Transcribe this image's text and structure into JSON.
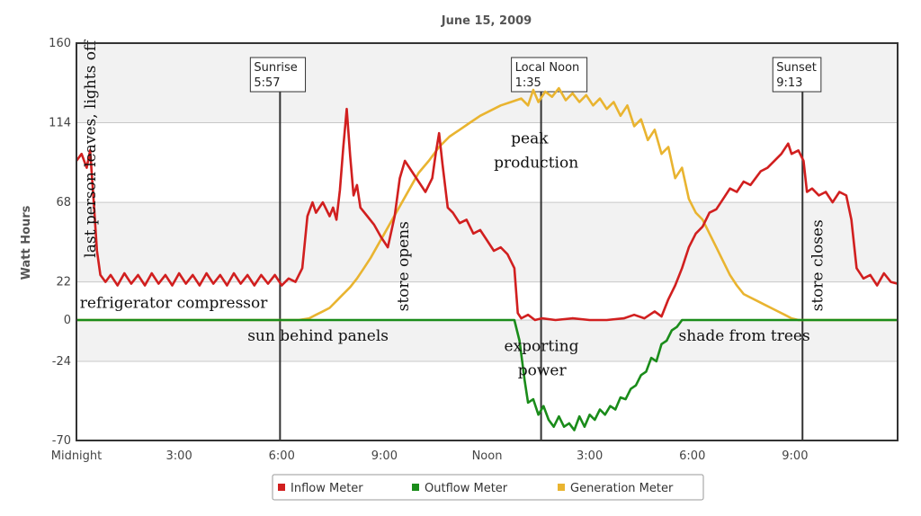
{
  "chart_data": {
    "type": "line",
    "title": "June 15, 2009",
    "ylabel": "Watt Hours",
    "xlabel": "",
    "ylim": [
      -70,
      160
    ],
    "xlim": [
      0,
      24
    ],
    "y_ticks": [
      {
        "value": 160,
        "label": "160"
      },
      {
        "value": 114,
        "label": "114"
      },
      {
        "value": 68,
        "label": "68"
      },
      {
        "value": 22,
        "label": "22"
      },
      {
        "value": 0,
        "label": "0"
      },
      {
        "value": -24,
        "label": "-24"
      },
      {
        "value": -70,
        "label": "-70"
      }
    ],
    "x_ticks": [
      {
        "value": 0,
        "label": "Midnight"
      },
      {
        "value": 3,
        "label": "3:00"
      },
      {
        "value": 6,
        "label": "6:00"
      },
      {
        "value": 9,
        "label": "9:00"
      },
      {
        "value": 12,
        "label": "Noon"
      },
      {
        "value": 15,
        "label": "3:00"
      },
      {
        "value": 18,
        "label": "6:00"
      },
      {
        "value": 21,
        "label": "9:00"
      }
    ],
    "grid": true,
    "legend_position": "bottom-center",
    "markers": [
      {
        "x": 5.95,
        "line1": "Sunrise",
        "line2": "5:57"
      },
      {
        "x": 13.58,
        "line1": "Local Noon",
        "line2": "1:35"
      },
      {
        "x": 21.22,
        "line1": "Sunset",
        "line2": "9:13"
      }
    ],
    "annotations": [
      {
        "text": "last person leaves, lights off",
        "x": 0.55,
        "y": 36,
        "rotate": true
      },
      {
        "text": "refrigerator compressor",
        "x": 0.1,
        "y": 7,
        "rotate": false
      },
      {
        "text": "sun behind panels",
        "x": 5.0,
        "y": -12,
        "rotate": false
      },
      {
        "text": "store opens",
        "x": 9.7,
        "y": 5,
        "rotate": true
      },
      {
        "text": "peak",
        "x": 12.7,
        "y": 102,
        "rotate": false
      },
      {
        "text": "production",
        "x": 12.2,
        "y": 88,
        "rotate": false
      },
      {
        "text": "exporting",
        "x": 12.5,
        "y": -18,
        "rotate": false
      },
      {
        "text": "power",
        "x": 12.9,
        "y": -32,
        "rotate": false
      },
      {
        "text": "shade from trees",
        "x": 17.6,
        "y": -12,
        "rotate": false
      },
      {
        "text": "store closes",
        "x": 21.8,
        "y": 5,
        "rotate": true
      }
    ],
    "series": [
      {
        "name": "Inflow Meter",
        "color": "#d11f1f",
        "points": [
          [
            0,
            92
          ],
          [
            0.15,
            96
          ],
          [
            0.3,
            88
          ],
          [
            0.4,
            98
          ],
          [
            0.5,
            70
          ],
          [
            0.6,
            40
          ],
          [
            0.7,
            26
          ],
          [
            0.85,
            22
          ],
          [
            1.0,
            26
          ],
          [
            1.2,
            20
          ],
          [
            1.4,
            27
          ],
          [
            1.6,
            21
          ],
          [
            1.8,
            26
          ],
          [
            2.0,
            20
          ],
          [
            2.2,
            27
          ],
          [
            2.4,
            21
          ],
          [
            2.6,
            26
          ],
          [
            2.8,
            20
          ],
          [
            3.0,
            27
          ],
          [
            3.2,
            21
          ],
          [
            3.4,
            26
          ],
          [
            3.6,
            20
          ],
          [
            3.8,
            27
          ],
          [
            4.0,
            21
          ],
          [
            4.2,
            26
          ],
          [
            4.4,
            20
          ],
          [
            4.6,
            27
          ],
          [
            4.8,
            21
          ],
          [
            5.0,
            26
          ],
          [
            5.2,
            20
          ],
          [
            5.4,
            26
          ],
          [
            5.6,
            21
          ],
          [
            5.8,
            26
          ],
          [
            6.0,
            20
          ],
          [
            6.2,
            24
          ],
          [
            6.4,
            22
          ],
          [
            6.6,
            30
          ],
          [
            6.75,
            60
          ],
          [
            6.9,
            68
          ],
          [
            7.0,
            62
          ],
          [
            7.2,
            68
          ],
          [
            7.4,
            60
          ],
          [
            7.5,
            65
          ],
          [
            7.6,
            58
          ],
          [
            7.7,
            75
          ],
          [
            7.8,
            100
          ],
          [
            7.9,
            122
          ],
          [
            8.0,
            95
          ],
          [
            8.1,
            72
          ],
          [
            8.2,
            78
          ],
          [
            8.3,
            65
          ],
          [
            8.5,
            60
          ],
          [
            8.7,
            55
          ],
          [
            8.9,
            48
          ],
          [
            9.1,
            42
          ],
          [
            9.3,
            60
          ],
          [
            9.45,
            82
          ],
          [
            9.6,
            92
          ],
          [
            9.8,
            86
          ],
          [
            10.0,
            80
          ],
          [
            10.2,
            74
          ],
          [
            10.4,
            82
          ],
          [
            10.5,
            96
          ],
          [
            10.6,
            108
          ],
          [
            10.7,
            90
          ],
          [
            10.85,
            65
          ],
          [
            11.0,
            62
          ],
          [
            11.2,
            56
          ],
          [
            11.4,
            58
          ],
          [
            11.6,
            50
          ],
          [
            11.8,
            52
          ],
          [
            12.0,
            46
          ],
          [
            12.2,
            40
          ],
          [
            12.4,
            42
          ],
          [
            12.6,
            38
          ],
          [
            12.8,
            30
          ],
          [
            12.9,
            4
          ],
          [
            13.0,
            1
          ],
          [
            13.2,
            3
          ],
          [
            13.4,
            0
          ],
          [
            13.6,
            1
          ],
          [
            14.0,
            0
          ],
          [
            14.5,
            1
          ],
          [
            15.0,
            0
          ],
          [
            15.5,
            0
          ],
          [
            16.0,
            1
          ],
          [
            16.3,
            3
          ],
          [
            16.6,
            1
          ],
          [
            16.9,
            5
          ],
          [
            17.1,
            2
          ],
          [
            17.3,
            12
          ],
          [
            17.5,
            20
          ],
          [
            17.7,
            30
          ],
          [
            17.9,
            42
          ],
          [
            18.1,
            50
          ],
          [
            18.3,
            54
          ],
          [
            18.5,
            62
          ],
          [
            18.7,
            64
          ],
          [
            18.9,
            70
          ],
          [
            19.1,
            76
          ],
          [
            19.3,
            74
          ],
          [
            19.5,
            80
          ],
          [
            19.7,
            78
          ],
          [
            20.0,
            86
          ],
          [
            20.2,
            88
          ],
          [
            20.4,
            92
          ],
          [
            20.6,
            96
          ],
          [
            20.8,
            102
          ],
          [
            20.9,
            96
          ],
          [
            21.1,
            98
          ],
          [
            21.25,
            92
          ],
          [
            21.35,
            74
          ],
          [
            21.5,
            76
          ],
          [
            21.7,
            72
          ],
          [
            21.9,
            74
          ],
          [
            22.1,
            68
          ],
          [
            22.3,
            74
          ],
          [
            22.5,
            72
          ],
          [
            22.65,
            58
          ],
          [
            22.8,
            30
          ],
          [
            23.0,
            24
          ],
          [
            23.2,
            26
          ],
          [
            23.4,
            20
          ],
          [
            23.6,
            27
          ],
          [
            23.8,
            22
          ],
          [
            24.0,
            21
          ]
        ]
      },
      {
        "name": "Outflow Meter",
        "color": "#1a8c1a",
        "points": [
          [
            0,
            0
          ],
          [
            3,
            0
          ],
          [
            6,
            0
          ],
          [
            9,
            0
          ],
          [
            12.5,
            0
          ],
          [
            12.8,
            0
          ],
          [
            12.95,
            -12
          ],
          [
            13.1,
            -35
          ],
          [
            13.2,
            -48
          ],
          [
            13.35,
            -46
          ],
          [
            13.5,
            -55
          ],
          [
            13.65,
            -50
          ],
          [
            13.8,
            -58
          ],
          [
            13.95,
            -62
          ],
          [
            14.1,
            -56
          ],
          [
            14.25,
            -62
          ],
          [
            14.4,
            -60
          ],
          [
            14.55,
            -64
          ],
          [
            14.7,
            -56
          ],
          [
            14.85,
            -62
          ],
          [
            15.0,
            -55
          ],
          [
            15.15,
            -58
          ],
          [
            15.3,
            -52
          ],
          [
            15.45,
            -55
          ],
          [
            15.6,
            -50
          ],
          [
            15.75,
            -52
          ],
          [
            15.9,
            -45
          ],
          [
            16.05,
            -46
          ],
          [
            16.2,
            -40
          ],
          [
            16.35,
            -38
          ],
          [
            16.5,
            -32
          ],
          [
            16.65,
            -30
          ],
          [
            16.8,
            -22
          ],
          [
            16.95,
            -24
          ],
          [
            17.1,
            -14
          ],
          [
            17.25,
            -12
          ],
          [
            17.4,
            -6
          ],
          [
            17.55,
            -4
          ],
          [
            17.7,
            0
          ],
          [
            18,
            0
          ],
          [
            21,
            0
          ],
          [
            24,
            0
          ]
        ]
      },
      {
        "name": "Generation Meter",
        "color": "#e9b430",
        "points": [
          [
            0,
            0
          ],
          [
            3,
            0
          ],
          [
            6,
            0
          ],
          [
            6.5,
            0
          ],
          [
            6.8,
            1
          ],
          [
            7.0,
            3
          ],
          [
            7.2,
            5
          ],
          [
            7.4,
            7
          ],
          [
            7.6,
            11
          ],
          [
            7.8,
            15
          ],
          [
            8.0,
            19
          ],
          [
            8.2,
            24
          ],
          [
            8.4,
            30
          ],
          [
            8.6,
            36
          ],
          [
            8.8,
            43
          ],
          [
            9.0,
            50
          ],
          [
            9.2,
            57
          ],
          [
            9.4,
            64
          ],
          [
            9.6,
            71
          ],
          [
            9.8,
            78
          ],
          [
            10.0,
            85
          ],
          [
            10.3,
            92
          ],
          [
            10.6,
            100
          ],
          [
            10.9,
            106
          ],
          [
            11.2,
            110
          ],
          [
            11.5,
            114
          ],
          [
            11.8,
            118
          ],
          [
            12.1,
            121
          ],
          [
            12.4,
            124
          ],
          [
            12.7,
            126
          ],
          [
            13.0,
            128
          ],
          [
            13.2,
            124
          ],
          [
            13.35,
            133
          ],
          [
            13.5,
            126
          ],
          [
            13.7,
            132
          ],
          [
            13.9,
            129
          ],
          [
            14.1,
            134
          ],
          [
            14.3,
            127
          ],
          [
            14.5,
            131
          ],
          [
            14.7,
            126
          ],
          [
            14.9,
            130
          ],
          [
            15.1,
            124
          ],
          [
            15.3,
            128
          ],
          [
            15.5,
            122
          ],
          [
            15.7,
            126
          ],
          [
            15.9,
            118
          ],
          [
            16.1,
            124
          ],
          [
            16.3,
            112
          ],
          [
            16.5,
            116
          ],
          [
            16.7,
            104
          ],
          [
            16.9,
            110
          ],
          [
            17.1,
            96
          ],
          [
            17.3,
            100
          ],
          [
            17.5,
            82
          ],
          [
            17.7,
            88
          ],
          [
            17.9,
            70
          ],
          [
            18.1,
            62
          ],
          [
            18.3,
            58
          ],
          [
            18.5,
            50
          ],
          [
            18.7,
            42
          ],
          [
            18.9,
            34
          ],
          [
            19.1,
            26
          ],
          [
            19.3,
            20
          ],
          [
            19.5,
            15
          ],
          [
            19.7,
            13
          ],
          [
            19.9,
            11
          ],
          [
            20.1,
            9
          ],
          [
            20.3,
            7
          ],
          [
            20.5,
            5
          ],
          [
            20.7,
            3
          ],
          [
            20.9,
            1
          ],
          [
            21.1,
            0
          ],
          [
            22,
            0
          ],
          [
            24,
            0
          ]
        ]
      }
    ]
  }
}
